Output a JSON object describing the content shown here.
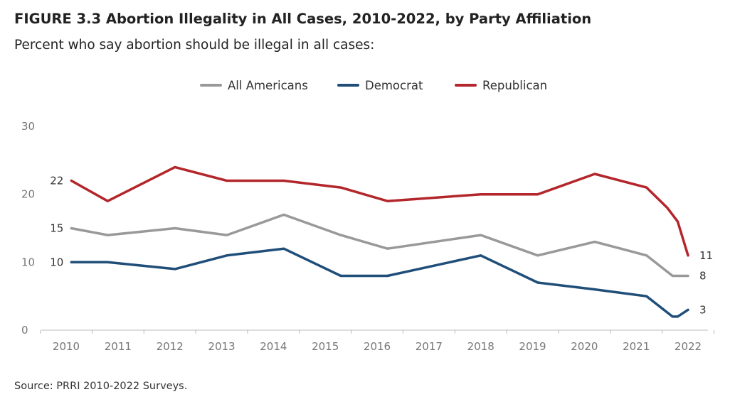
{
  "figure": {
    "title": "FIGURE 3.3  Abortion Illegality in All Cases, 2010-2022, by Party Affiliation",
    "subtitle": "Percent who say abortion should be illegal in all cases:",
    "source": "Source: PRRI 2010-2022 Surveys."
  },
  "chart_data": {
    "type": "line",
    "title": "FIGURE 3.3  Abortion Illegality in All Cases, 2010-2022, by Party Affiliation",
    "subtitle": "Percent who say abortion should be illegal in all cases:",
    "xlabel": "",
    "ylabel": "",
    "x_ticks": [
      "2010",
      "2011",
      "2012",
      "2013",
      "2014",
      "2015",
      "2016",
      "2017",
      "2018",
      "2019",
      "2020",
      "2021",
      "2022"
    ],
    "xlim": [
      2010,
      2022.2
    ],
    "ylim": [
      0,
      30
    ],
    "y_ticks": [
      0,
      10,
      20,
      30
    ],
    "grid": false,
    "legend_position": "top-center",
    "series": [
      {
        "name": "All Americans",
        "color": "#999999",
        "x": [
          2010.1,
          2010.8,
          2012.1,
          2013.1,
          2014.2,
          2015.3,
          2016.2,
          2018.0,
          2019.1,
          2020.2,
          2021.2,
          2021.7,
          2022.0
        ],
        "y": [
          15,
          14,
          15,
          14,
          17,
          14,
          12,
          14,
          11,
          13,
          11,
          8,
          8
        ],
        "labels": [
          {
            "index": 0,
            "text": "15",
            "side": "left"
          },
          {
            "index": 12,
            "text": "8",
            "side": "right"
          }
        ]
      },
      {
        "name": "Democrat",
        "color": "#1f4e79",
        "x": [
          2010.1,
          2010.8,
          2012.1,
          2013.1,
          2014.2,
          2015.3,
          2016.2,
          2018.0,
          2019.1,
          2020.2,
          2021.2,
          2021.7,
          2021.8,
          2022.0
        ],
        "y": [
          10,
          10,
          9,
          11,
          12,
          8,
          8,
          11,
          7,
          6,
          5,
          2,
          2,
          3
        ],
        "labels": [
          {
            "index": 0,
            "text": "10",
            "side": "left"
          },
          {
            "index": 13,
            "text": "3",
            "side": "right"
          }
        ]
      },
      {
        "name": "Republican",
        "color": "#b3262b",
        "x": [
          2010.1,
          2010.8,
          2012.1,
          2013.1,
          2014.2,
          2015.3,
          2016.2,
          2018.0,
          2019.1,
          2020.2,
          2021.2,
          2021.6,
          2021.8,
          2022.0
        ],
        "y": [
          22,
          19,
          24,
          22,
          22,
          21,
          19,
          20,
          20,
          23,
          21,
          18,
          16,
          11
        ],
        "labels": [
          {
            "index": 0,
            "text": "22",
            "side": "left"
          },
          {
            "index": 13,
            "text": "11",
            "side": "right"
          }
        ]
      }
    ]
  }
}
